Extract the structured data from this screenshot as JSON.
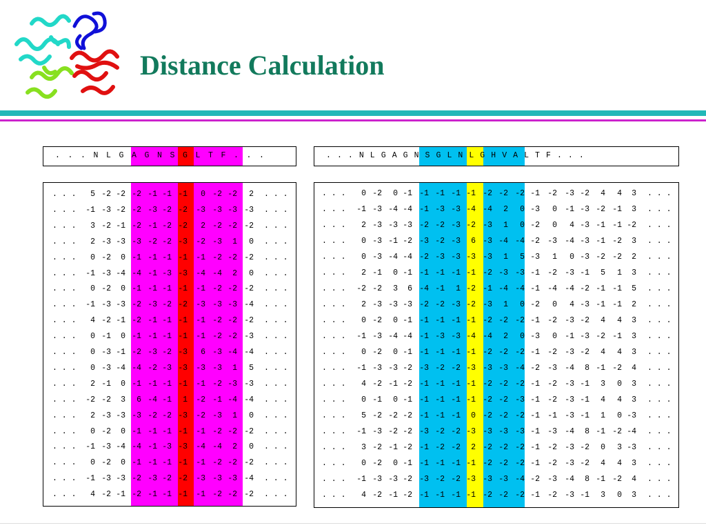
{
  "slide": {
    "title": "Distance Calculation",
    "colors": {
      "title": "#127a5c",
      "rule_teal": "#22b8b8",
      "rule_magenta": "#cc22cc",
      "highlight_magenta": "#ff00ff",
      "highlight_red": "#ff0000",
      "highlight_cyan": "#00c0f0",
      "highlight_yellow": "#ffff00"
    },
    "logo_icon": "protein-structure-icon"
  },
  "left_header": "...NLGAGNSGLTF...",
  "left_matrix": [
    [
      ". . .",
      "5",
      "-2",
      "-2",
      "-2",
      "-1",
      "-1",
      "-1",
      "0",
      "-2",
      "-2",
      "2",
      ". . ."
    ],
    [
      ". . .",
      "-1",
      "-3",
      "-2",
      "-2",
      "-3",
      "-2",
      "-2",
      "-3",
      "-3",
      "-3",
      "-3",
      ". . ."
    ],
    [
      ". . .",
      "3",
      "-2",
      "-1",
      "-2",
      "-1",
      "-2",
      "-2",
      "2",
      "-2",
      "-2",
      "-2",
      ". . ."
    ],
    [
      ". . .",
      "2",
      "-3",
      "-3",
      "-3",
      "-2",
      "-2",
      "-3",
      "-2",
      "-3",
      "1",
      "0",
      ". . ."
    ],
    [
      ". . .",
      "0",
      "-2",
      "0",
      "-1",
      "-1",
      "-1",
      "-1",
      "-1",
      "-2",
      "-2",
      "-2",
      ". . ."
    ],
    [
      ". . .",
      "-1",
      "-3",
      "-4",
      "-4",
      "-1",
      "-3",
      "-3",
      "-4",
      "-4",
      "2",
      "0",
      ". . ."
    ],
    [
      ". . .",
      "0",
      "-2",
      "0",
      "-1",
      "-1",
      "-1",
      "-1",
      "-1",
      "-2",
      "-2",
      "-2",
      ". . ."
    ],
    [
      ". . .",
      "-1",
      "-3",
      "-3",
      "-2",
      "-3",
      "-2",
      "-2",
      "-3",
      "-3",
      "-3",
      "-4",
      ". . ."
    ],
    [
      ". . .",
      "4",
      "-2",
      "-1",
      "-2",
      "-1",
      "-1",
      "-1",
      "-1",
      "-2",
      "-2",
      "-2",
      ". . ."
    ],
    [
      ". . .",
      "0",
      "-1",
      "0",
      "-1",
      "-1",
      "-1",
      "-1",
      "-1",
      "-2",
      "-2",
      "-3",
      ". . ."
    ],
    [
      ". . .",
      "0",
      "-3",
      "-1",
      "-2",
      "-3",
      "-2",
      "-3",
      "6",
      "-3",
      "-4",
      "-4",
      ". . ."
    ],
    [
      ". . .",
      "0",
      "-3",
      "-4",
      "-4",
      "-2",
      "-3",
      "-3",
      "-3",
      "-3",
      "1",
      "5",
      ". . ."
    ],
    [
      ". . .",
      "2",
      "-1",
      "0",
      "-1",
      "-1",
      "-1",
      "-1",
      "-1",
      "-2",
      "-3",
      "-3",
      ". . ."
    ],
    [
      ". . .",
      "-2",
      "-2",
      "3",
      "6",
      "-4",
      "-1",
      "1",
      "-2",
      "-1",
      "-4",
      "-4",
      ". . ."
    ],
    [
      ". . .",
      "2",
      "-3",
      "-3",
      "-3",
      "-2",
      "-2",
      "-3",
      "-2",
      "-3",
      "1",
      "0",
      ". . ."
    ],
    [
      ". . .",
      "0",
      "-2",
      "0",
      "-1",
      "-1",
      "-1",
      "-1",
      "-1",
      "-2",
      "-2",
      "-2",
      ". . ."
    ],
    [
      ". . .",
      "-1",
      "-3",
      "-4",
      "-4",
      "-1",
      "-3",
      "-3",
      "-4",
      "-4",
      "2",
      "0",
      ". . ."
    ],
    [
      ". . .",
      "0",
      "-2",
      "0",
      "-1",
      "-1",
      "-1",
      "-1",
      "-1",
      "-2",
      "-2",
      "-2",
      ". . ."
    ],
    [
      ". . .",
      "-1",
      "-3",
      "-3",
      "-2",
      "-3",
      "-2",
      "-2",
      "-3",
      "-3",
      "-3",
      "-4",
      ". . ."
    ],
    [
      ". . .",
      "4",
      "-2",
      "-1",
      "-2",
      "-1",
      "-1",
      "-1",
      "-1",
      "-2",
      "-2",
      "-2",
      ". . ."
    ]
  ],
  "right_header": "...NLGAGNSGLNLGHVALTF...",
  "right_matrix": [
    [
      ". . .",
      "0",
      "-2",
      "0",
      "-1",
      "-1",
      "-1",
      "-1",
      "-1",
      "-2",
      "-2",
      "-2",
      "-1",
      "-2",
      "-3",
      "-2",
      "4",
      "4",
      "3",
      ". . ."
    ],
    [
      ". . .",
      "-1",
      "-3",
      "-4",
      "-4",
      "-1",
      "-3",
      "-3",
      "-4",
      "-4",
      "2",
      "0",
      "-3",
      "0",
      "-1",
      "-3",
      "-2",
      "-1",
      "3",
      ". . ."
    ],
    [
      ". . .",
      "2",
      "-3",
      "-3",
      "-3",
      "-2",
      "-2",
      "-3",
      "-2",
      "-3",
      "1",
      "0",
      "-2",
      "0",
      "4",
      "-3",
      "-1",
      "-1",
      "-2",
      ". . ."
    ],
    [
      ". . .",
      "0",
      "-3",
      "-1",
      "-2",
      "-3",
      "-2",
      "-3",
      "6",
      "-3",
      "-4",
      "-4",
      "-2",
      "-3",
      "-4",
      "-3",
      "-1",
      "-2",
      "3",
      ". . ."
    ],
    [
      ". . .",
      "0",
      "-3",
      "-4",
      "-4",
      "-2",
      "-3",
      "-3",
      "-3",
      "-3",
      "1",
      "5",
      "-3",
      "1",
      "0",
      "-3",
      "-2",
      "-2",
      "2",
      ". . ."
    ],
    [
      ". . .",
      "2",
      "-1",
      "0",
      "-1",
      "-1",
      "-1",
      "-1",
      "-1",
      "-2",
      "-3",
      "-3",
      "-1",
      "-2",
      "-3",
      "-1",
      "5",
      "1",
      "3",
      ". . ."
    ],
    [
      ". . .",
      "-2",
      "-2",
      "3",
      "6",
      "-4",
      "-1",
      "1",
      "-2",
      "-1",
      "-4",
      "-4",
      "-1",
      "-4",
      "-4",
      "-2",
      "-1",
      "-1",
      "5",
      ". . ."
    ],
    [
      ". . .",
      "2",
      "-3",
      "-3",
      "-3",
      "-2",
      "-2",
      "-3",
      "-2",
      "-3",
      "1",
      "0",
      "-2",
      "0",
      "4",
      "-3",
      "-1",
      "-1",
      "2",
      ". . ."
    ],
    [
      ". . .",
      "0",
      "-2",
      "0",
      "-1",
      "-1",
      "-1",
      "-1",
      "-1",
      "-2",
      "-2",
      "-2",
      "-1",
      "-2",
      "-3",
      "-2",
      "4",
      "4",
      "3",
      ". . ."
    ],
    [
      ". . .",
      "-1",
      "-3",
      "-4",
      "-4",
      "-1",
      "-3",
      "-3",
      "-4",
      "-4",
      "2",
      "0",
      "-3",
      "0",
      "-1",
      "-3",
      "-2",
      "-1",
      "3",
      ". . ."
    ],
    [
      ". . .",
      "0",
      "-2",
      "0",
      "-1",
      "-1",
      "-1",
      "-1",
      "-1",
      "-2",
      "-2",
      "-2",
      "-1",
      "-2",
      "-3",
      "-2",
      "4",
      "4",
      "3",
      ". . ."
    ],
    [
      ". . .",
      "-1",
      "-3",
      "-3",
      "-2",
      "-3",
      "-2",
      "-2",
      "-3",
      "-3",
      "-3",
      "-4",
      "-2",
      "-3",
      "-4",
      "8",
      "-1",
      "-2",
      "4",
      ". . ."
    ],
    [
      ". . .",
      "4",
      "-2",
      "-1",
      "-2",
      "-1",
      "-1",
      "-1",
      "-1",
      "-2",
      "-2",
      "-2",
      "-1",
      "-2",
      "-3",
      "-1",
      "3",
      "0",
      "3",
      ". . ."
    ],
    [
      ". . .",
      "0",
      "-1",
      "0",
      "-1",
      "-1",
      "-1",
      "-1",
      "-1",
      "-2",
      "-2",
      "-3",
      "-1",
      "-2",
      "-3",
      "-1",
      "4",
      "4",
      "3",
      ". . ."
    ],
    [
      ". . .",
      "5",
      "-2",
      "-2",
      "-2",
      "-1",
      "-1",
      "-1",
      "0",
      "-2",
      "-2",
      "-2",
      "-1",
      "-1",
      "-3",
      "-1",
      "1",
      "0",
      "-3",
      ". . ."
    ],
    [
      ". . .",
      "-1",
      "-3",
      "-2",
      "-2",
      "-3",
      "-2",
      "-2",
      "-3",
      "-3",
      "-3",
      "-3",
      "-1",
      "-3",
      "-4",
      "8",
      "-1",
      "-2",
      "-4",
      ". . ."
    ],
    [
      ". . .",
      "3",
      "-2",
      "-1",
      "-2",
      "-1",
      "-2",
      "-2",
      "2",
      "-2",
      "-2",
      "-2",
      "-1",
      "-2",
      "-3",
      "-2",
      "0",
      "3",
      "-3",
      ". . ."
    ],
    [
      ". . .",
      "0",
      "-2",
      "0",
      "-1",
      "-1",
      "-1",
      "-1",
      "-1",
      "-2",
      "-2",
      "-2",
      "-1",
      "-2",
      "-3",
      "-2",
      "4",
      "4",
      "3",
      ". . ."
    ],
    [
      ". . .",
      "-1",
      "-3",
      "-3",
      "-2",
      "-3",
      "-2",
      "-2",
      "-3",
      "-3",
      "-3",
      "-4",
      "-2",
      "-3",
      "-4",
      "8",
      "-1",
      "-2",
      "4",
      ". . ."
    ],
    [
      ". . .",
      "4",
      "-2",
      "-1",
      "-2",
      "-1",
      "-1",
      "-1",
      "-1",
      "-2",
      "-2",
      "-2",
      "-1",
      "-2",
      "-3",
      "-1",
      "3",
      "0",
      "3",
      ". . ."
    ]
  ]
}
